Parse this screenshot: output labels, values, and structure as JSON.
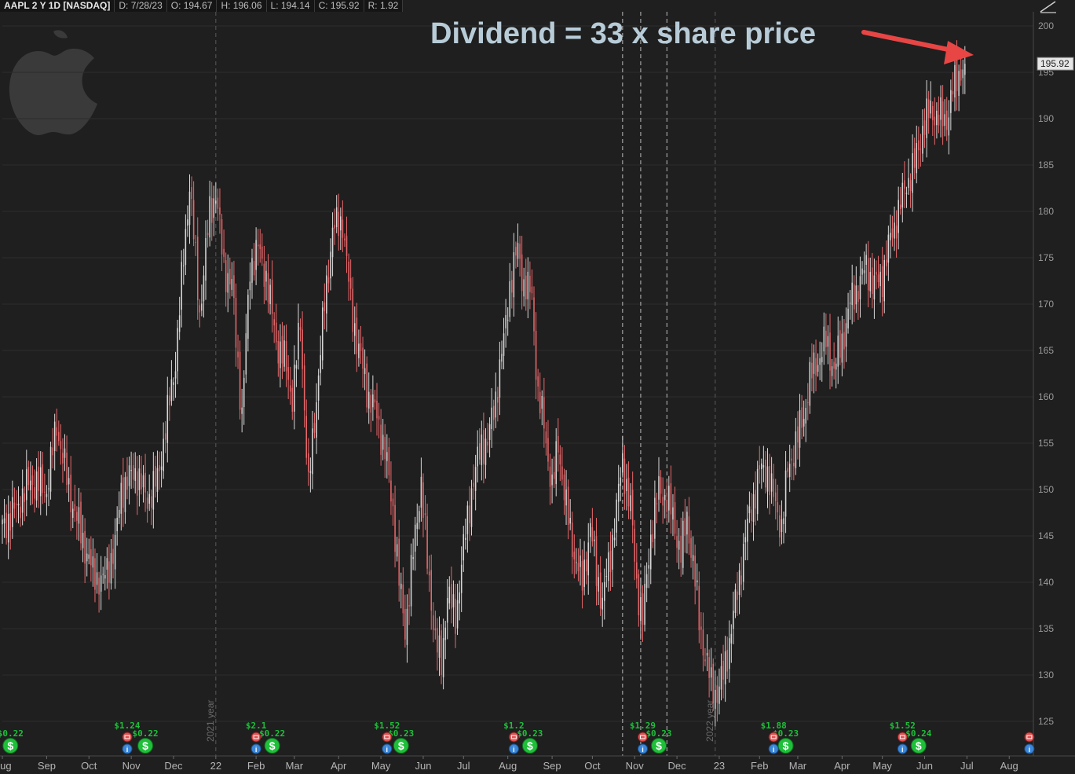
{
  "header": {
    "symbol": "AAPL 2 Y 1D [NASDAQ]",
    "date": "D: 7/28/23",
    "open": "O: 194.67",
    "high": "H: 196.06",
    "low": "L: 194.14",
    "close": "C: 195.92",
    "range": "R: 1.92"
  },
  "annotation": "Dividend = 33 x share price",
  "colors": {
    "background": "#1f1f1f",
    "up": "#d8d8d8",
    "down": "#e8676a",
    "arrow": "#e84545",
    "dividend": "#1fbf3a",
    "earnings": "#e05050",
    "info": "#3a86d8"
  },
  "icons": [
    "apple-logo-icon",
    "dividend-icon",
    "earnings-icon",
    "info-icon",
    "drawing-tool-icon"
  ],
  "chart_data": {
    "type": "candlestick",
    "title": "AAPL 2 Y 1D [NASDAQ]",
    "ylim": [
      122,
      202
    ],
    "yticks": [
      125,
      130,
      135,
      140,
      145,
      150,
      155,
      160,
      165,
      170,
      175,
      180,
      185,
      190,
      195,
      200
    ],
    "last_price_label": "195.92",
    "xticks": [
      {
        "label": "Aug",
        "t": 0
      },
      {
        "label": "Sep",
        "t": 22
      },
      {
        "label": "Oct",
        "t": 43
      },
      {
        "label": "Nov",
        "t": 64
      },
      {
        "label": "Dec",
        "t": 85
      },
      {
        "label": "22",
        "t": 106
      },
      {
        "label": "Feb",
        "t": 126
      },
      {
        "label": "Mar",
        "t": 145
      },
      {
        "label": "Apr",
        "t": 167
      },
      {
        "label": "May",
        "t": 188
      },
      {
        "label": "Jun",
        "t": 209
      },
      {
        "label": "Jul",
        "t": 229
      },
      {
        "label": "Aug",
        "t": 251
      },
      {
        "label": "Sep",
        "t": 273
      },
      {
        "label": "Oct",
        "t": 293
      },
      {
        "label": "Nov",
        "t": 314
      },
      {
        "label": "Dec",
        "t": 335
      },
      {
        "label": "23",
        "t": 356
      },
      {
        "label": "Feb",
        "t": 376
      },
      {
        "label": "Mar",
        "t": 395
      },
      {
        "label": "Apr",
        "t": 417
      },
      {
        "label": "May",
        "t": 437
      },
      {
        "label": "Jun",
        "t": 458
      },
      {
        "label": "Jul",
        "t": 479
      },
      {
        "label": "Aug",
        "t": 500
      }
    ],
    "year_markers": [
      {
        "label": "2021 year",
        "t": 106
      },
      {
        "label": "2022 year",
        "t": 354
      }
    ],
    "event_lines_t": [
      308,
      317,
      330
    ],
    "anchors": [
      [
        0,
        146
      ],
      [
        7,
        148
      ],
      [
        14,
        151
      ],
      [
        22,
        150
      ],
      [
        27,
        157
      ],
      [
        33,
        150
      ],
      [
        38,
        146
      ],
      [
        45,
        141
      ],
      [
        50,
        140
      ],
      [
        56,
        144
      ],
      [
        59,
        150
      ],
      [
        66,
        152
      ],
      [
        72,
        149
      ],
      [
        77,
        151
      ],
      [
        82,
        158
      ],
      [
        86,
        164
      ],
      [
        90,
        175
      ],
      [
        93,
        183
      ],
      [
        98,
        169
      ],
      [
        103,
        180
      ],
      [
        106,
        182
      ],
      [
        110,
        174
      ],
      [
        114,
        172
      ],
      [
        119,
        158
      ],
      [
        123,
        174
      ],
      [
        127,
        176
      ],
      [
        131,
        173
      ],
      [
        136,
        166
      ],
      [
        140,
        164
      ],
      [
        144,
        160
      ],
      [
        148,
        168
      ],
      [
        152,
        150
      ],
      [
        156,
        160
      ],
      [
        160,
        170
      ],
      [
        164,
        178
      ],
      [
        169,
        179
      ],
      [
        173,
        170
      ],
      [
        177,
        165
      ],
      [
        182,
        160
      ],
      [
        186,
        158
      ],
      [
        190,
        154
      ],
      [
        194,
        148
      ],
      [
        197,
        140
      ],
      [
        200,
        135
      ],
      [
        204,
        143
      ],
      [
        208,
        151
      ],
      [
        211,
        142
      ],
      [
        215,
        134
      ],
      [
        218,
        131
      ],
      [
        221,
        139
      ],
      [
        225,
        136
      ],
      [
        228,
        142
      ],
      [
        233,
        150
      ],
      [
        238,
        155
      ],
      [
        241,
        155
      ],
      [
        245,
        160
      ],
      [
        249,
        166
      ],
      [
        252,
        172
      ],
      [
        256,
        176
      ],
      [
        259,
        172
      ],
      [
        263,
        171
      ],
      [
        266,
        160
      ],
      [
        269,
        157
      ],
      [
        273,
        150
      ],
      [
        276,
        155
      ],
      [
        280,
        148
      ],
      [
        284,
        143
      ],
      [
        288,
        140
      ],
      [
        292,
        146
      ],
      [
        295,
        141
      ],
      [
        298,
        138
      ],
      [
        302,
        143
      ],
      [
        305,
        148
      ],
      [
        308,
        153
      ],
      [
        312,
        148
      ],
      [
        315,
        140
      ],
      [
        318,
        136
      ],
      [
        322,
        145
      ],
      [
        326,
        150
      ],
      [
        330,
        149
      ],
      [
        333,
        147
      ],
      [
        337,
        143
      ],
      [
        340,
        147
      ],
      [
        343,
        142
      ],
      [
        346,
        136
      ],
      [
        349,
        132
      ],
      [
        352,
        129
      ],
      [
        355,
        128
      ],
      [
        358,
        130
      ],
      [
        362,
        135
      ],
      [
        365,
        139
      ],
      [
        369,
        145
      ],
      [
        372,
        148
      ],
      [
        376,
        152
      ],
      [
        380,
        152
      ],
      [
        383,
        149
      ],
      [
        387,
        146
      ],
      [
        390,
        152
      ],
      [
        394,
        155
      ],
      [
        398,
        158
      ],
      [
        401,
        162
      ],
      [
        405,
        164
      ],
      [
        409,
        166
      ],
      [
        413,
        163
      ],
      [
        417,
        166
      ],
      [
        421,
        170
      ],
      [
        425,
        172
      ],
      [
        429,
        174
      ],
      [
        433,
        172
      ],
      [
        437,
        173
      ],
      [
        441,
        177
      ],
      [
        445,
        180
      ],
      [
        449,
        183
      ],
      [
        453,
        185
      ],
      [
        457,
        189
      ],
      [
        461,
        191
      ],
      [
        465,
        190
      ],
      [
        469,
        190
      ],
      [
        472,
        193
      ],
      [
        475,
        195
      ],
      [
        478,
        195.92
      ]
    ],
    "dividends": [
      {
        "t": 4,
        "amount": "$0.22"
      },
      {
        "t": 71,
        "amount": "$0.22"
      },
      {
        "t": 134,
        "amount": "$0.22"
      },
      {
        "t": 198,
        "amount": "$0.23"
      },
      {
        "t": 262,
        "amount": "$0.23"
      },
      {
        "t": 326,
        "amount": "$0.23"
      },
      {
        "t": 389,
        "amount": "$0.23"
      },
      {
        "t": 455,
        "amount": "$0.24"
      }
    ],
    "earnings": [
      {
        "t": 62,
        "eps": "$1.24"
      },
      {
        "t": 126,
        "eps": "$2.1"
      },
      {
        "t": 191,
        "eps": "$1.52"
      },
      {
        "t": 254,
        "eps": "$1.2"
      },
      {
        "t": 318,
        "eps": "$1.29"
      },
      {
        "t": 383,
        "eps": "$1.88"
      },
      {
        "t": 447,
        "eps": "$1.52"
      },
      {
        "t": 510,
        "eps": ""
      }
    ]
  }
}
